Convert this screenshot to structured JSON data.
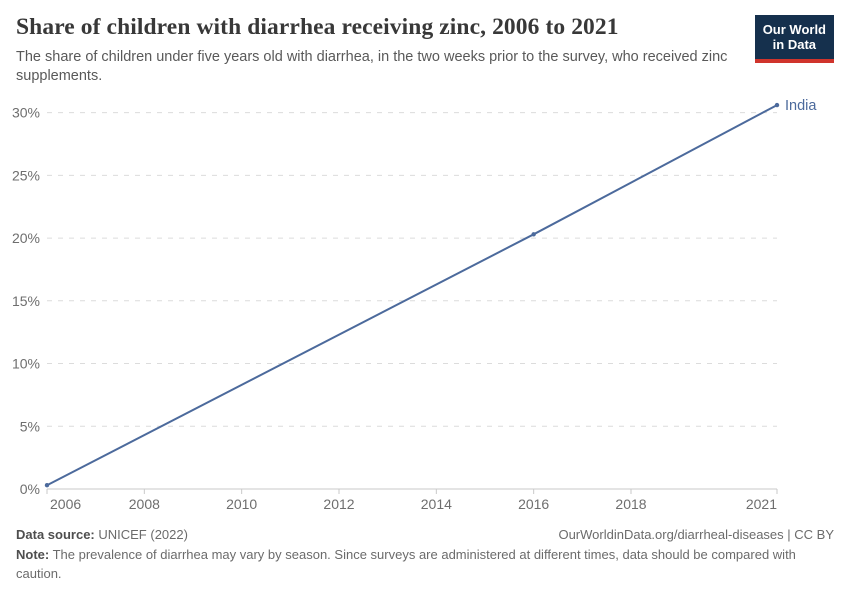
{
  "header": {
    "title": "Share of children with diarrhea receiving zinc, 2006 to 2021",
    "subtitle": "The share of children under five years old with diarrhea, in the two weeks prior to the survey, who received zinc supplements.",
    "logo_line1": "Our World",
    "logo_line2": "in Data"
  },
  "chart_data": {
    "type": "line",
    "title": "Share of children with diarrhea receiving zinc, 2006 to 2021",
    "xlim": [
      2006,
      2021
    ],
    "ylim": [
      0,
      30.6
    ],
    "x_ticks": [
      2006,
      2008,
      2010,
      2012,
      2014,
      2016,
      2018,
      2021
    ],
    "y_ticks": [
      0,
      5,
      10,
      15,
      20,
      25,
      30
    ],
    "y_tick_suffix": "%",
    "grid": "horizontal-dashed",
    "legend_position": "end-of-line-label",
    "series": [
      {
        "name": "India",
        "color": "#4c6a9c",
        "x": [
          2006,
          2016,
          2021
        ],
        "values": [
          0.3,
          20.3,
          30.6
        ]
      }
    ]
  },
  "footer": {
    "datasource_label": "Data source:",
    "datasource_value": " UNICEF (2022)",
    "link": "OurWorldinData.org/diarrheal-diseases | CC BY",
    "note_label": "Note:",
    "note_text": " The prevalence of diarrhea may vary by season. Since surveys are administered at different times, data should be compared with caution."
  },
  "colors": {
    "line": "#4c6a9c",
    "grid": "#dcdcdc",
    "axis": "#c9c9c9",
    "tick_text": "#6e6e6e",
    "logo_bg": "#15304d",
    "logo_accent": "#d0342c"
  }
}
